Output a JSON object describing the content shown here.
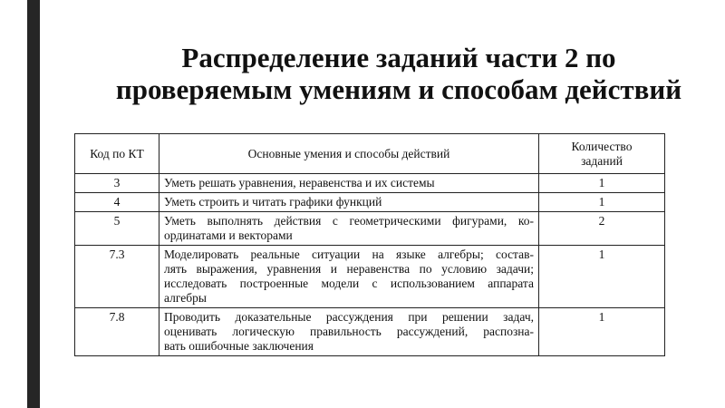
{
  "title": {
    "line1": "Распределение заданий части 2 по",
    "line2": "проверяемым умениям и способам действий"
  },
  "table": {
    "headers": [
      "Код по КТ",
      "Основные умения и способы действий",
      "Количество заданий"
    ],
    "header_count_lines": [
      "Количество",
      "заданий"
    ],
    "rows": [
      {
        "code": "3",
        "skill": [
          "Уметь решать уравнения, неравенства и их системы"
        ],
        "count": "1"
      },
      {
        "code": "4",
        "skill": [
          "Уметь строить и читать графики функций"
        ],
        "count": "1"
      },
      {
        "code": "5",
        "skill": [
          "Уметь выполнять действия с геометрическими фигурами, ко-",
          "ординатами и векторами"
        ],
        "count": "2"
      },
      {
        "code": "7.3",
        "skill": [
          "Моделировать реальные ситуации на языке алгебры; состав-",
          "лять выражения, уравнения и неравенства по условию задачи;",
          "исследовать построенные модели с использованием аппарата",
          "алгебры"
        ],
        "count": "1"
      },
      {
        "code": "7.8",
        "skill": [
          "Проводить доказательные рассуждения при решении задач,",
          "оценивать логическую правильность рассуждений, распозна-",
          "вать ошибочные заключения"
        ],
        "count": "1"
      }
    ]
  }
}
